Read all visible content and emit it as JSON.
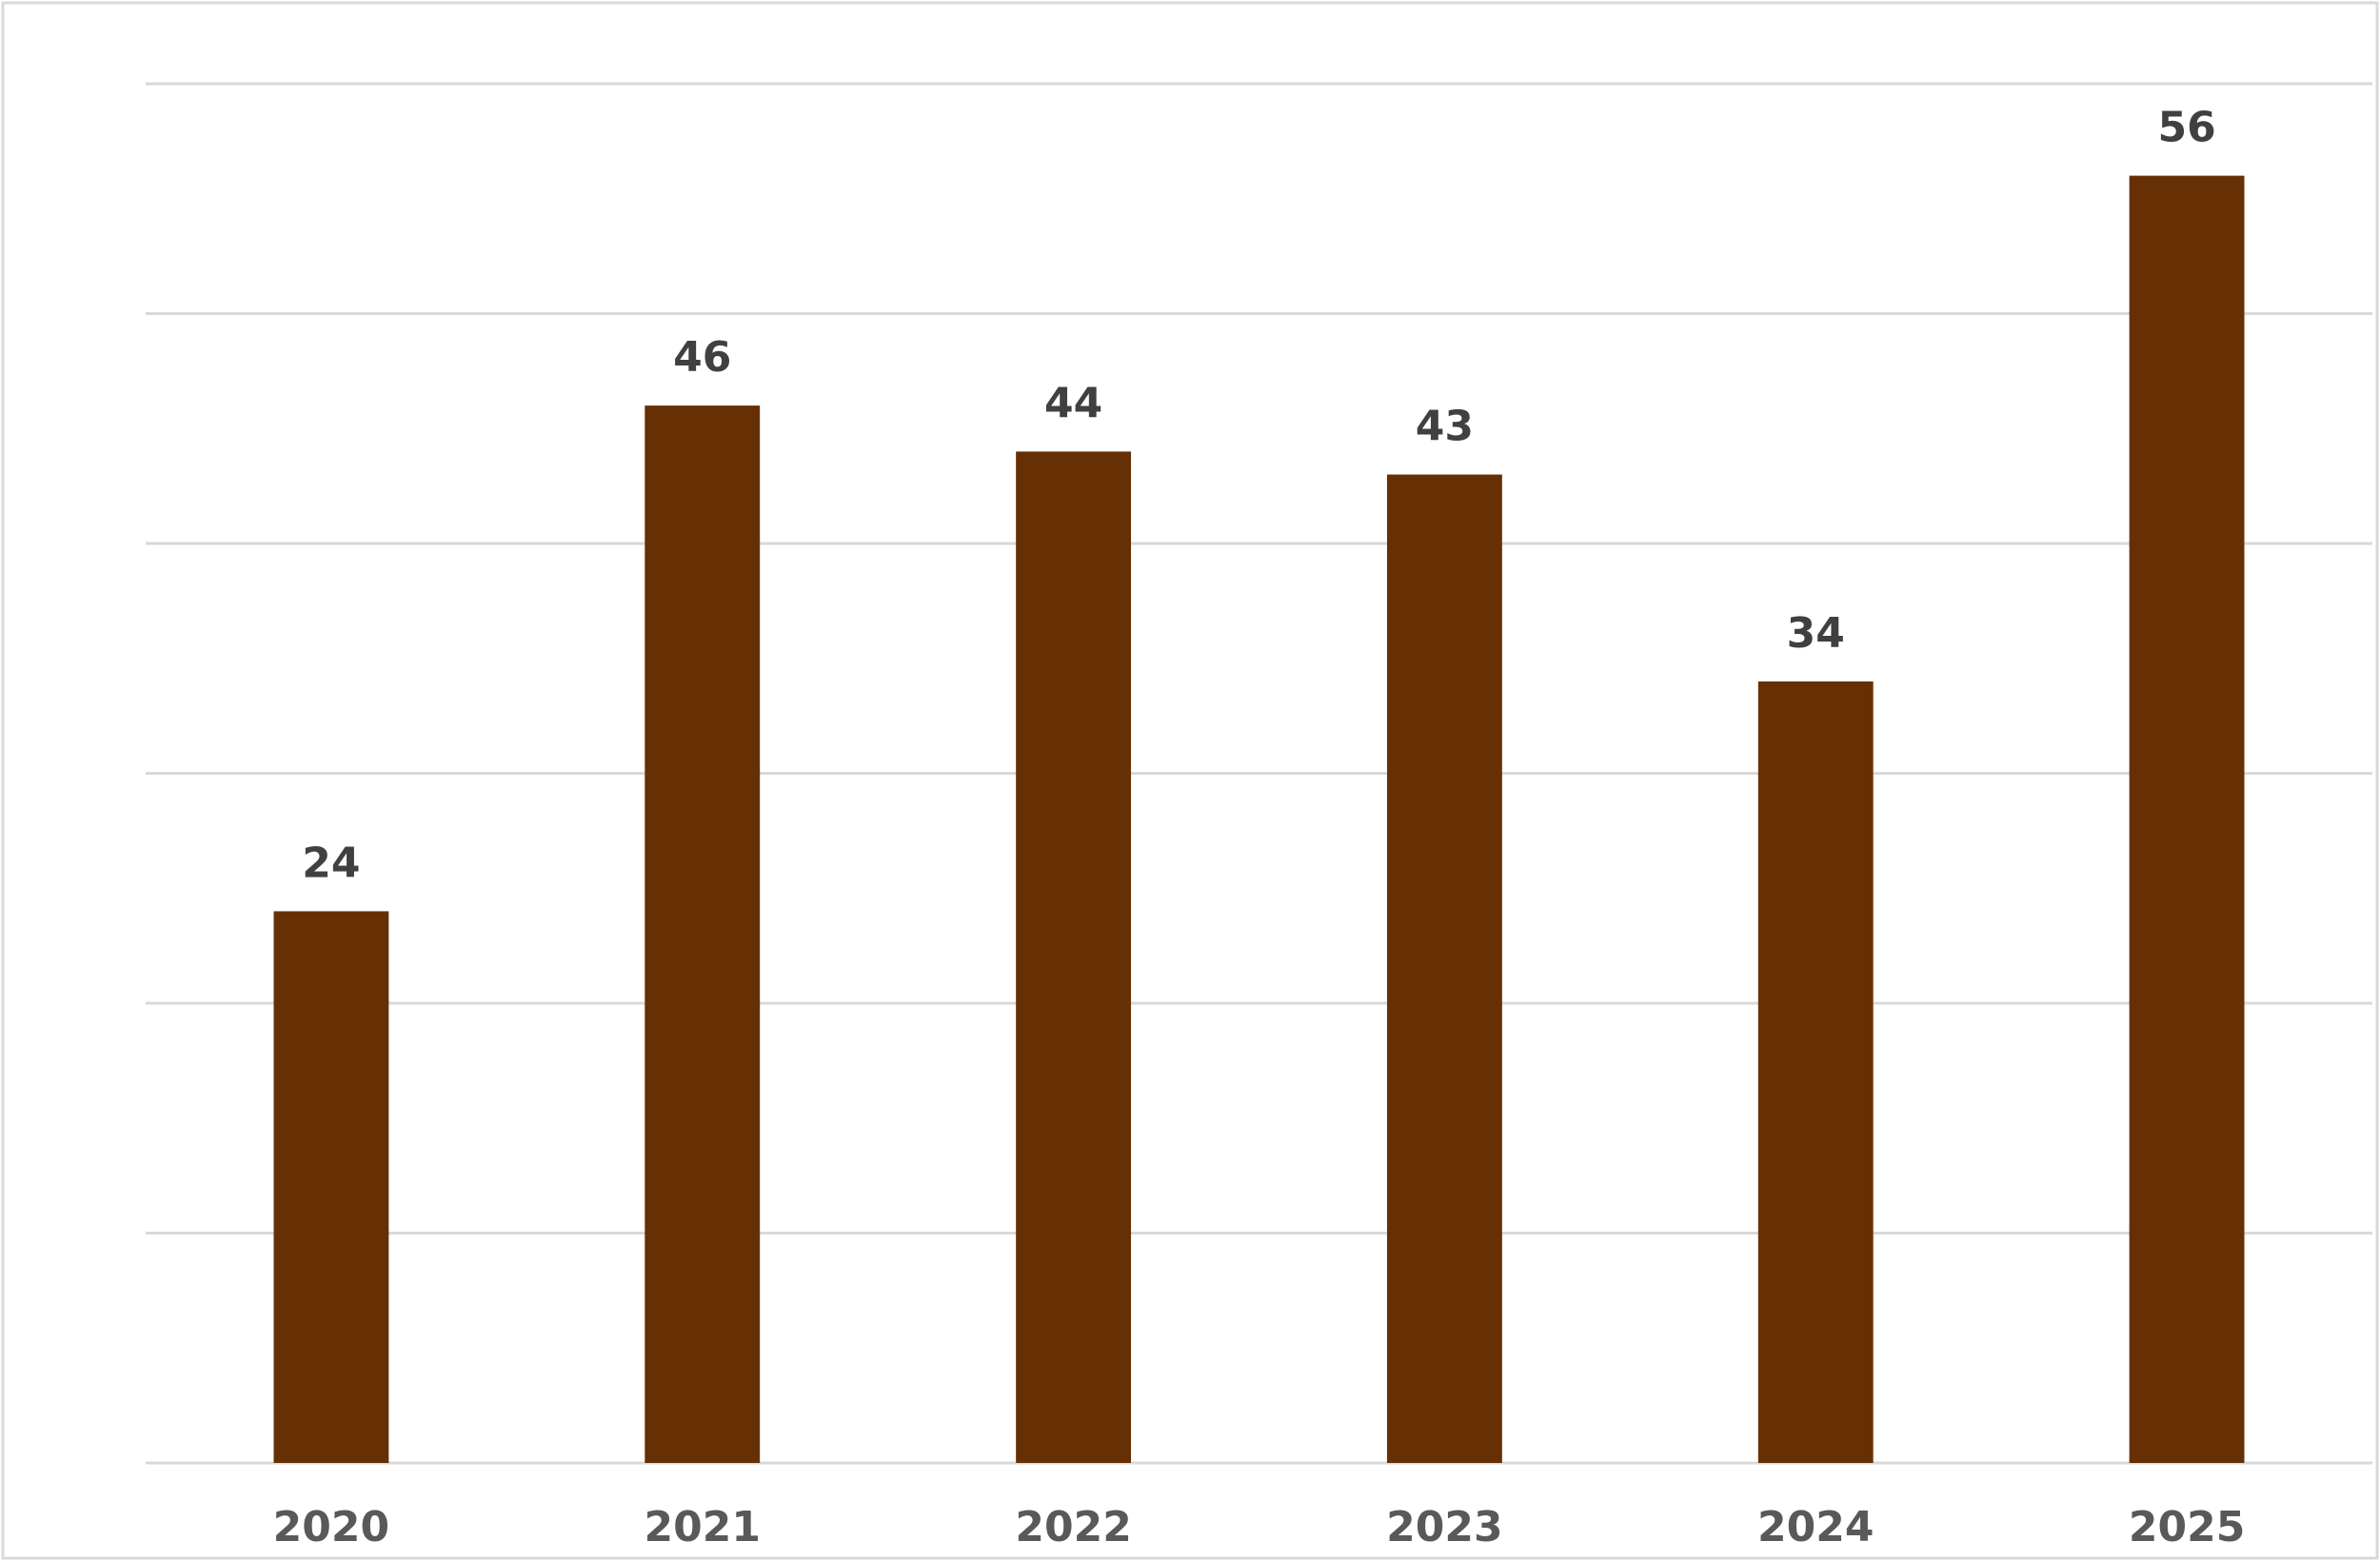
{
  "chart_data": {
    "type": "bar",
    "categories": [
      "2020",
      "2021",
      "2022",
      "2023",
      "2024",
      "2025"
    ],
    "values": [
      24,
      46,
      44,
      43,
      34,
      56
    ],
    "color": "#663004",
    "ylim": [
      0,
      60
    ],
    "yticks": [
      0,
      10,
      20,
      30,
      40,
      50,
      60
    ],
    "grid": true
  }
}
